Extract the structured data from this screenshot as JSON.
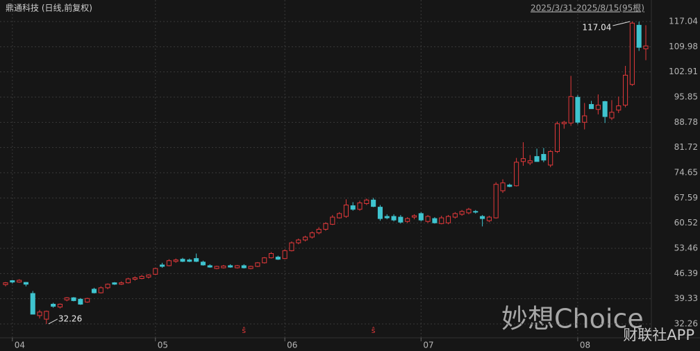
{
  "chart_data": {
    "type": "candlestick",
    "title": "鼎通科技 (日线,前复权)",
    "range_label": "2025/3/31-2025/8/15(95根)",
    "categories": [
      null,
      "04",
      null,
      null,
      null,
      null,
      null,
      null,
      null,
      null,
      null,
      null,
      null,
      null,
      null,
      null,
      null,
      null,
      null,
      null,
      null,
      null,
      "05",
      null,
      null,
      null,
      null,
      null,
      null,
      null,
      null,
      null,
      null,
      null,
      null,
      null,
      null,
      null,
      null,
      null,
      null,
      "06",
      null,
      null,
      null,
      null,
      null,
      null,
      null,
      null,
      null,
      null,
      null,
      null,
      null,
      null,
      null,
      null,
      null,
      null,
      null,
      "07",
      null,
      null,
      null,
      null,
      null,
      null,
      null,
      null,
      null,
      null,
      null,
      null,
      null,
      null,
      null,
      null,
      null,
      null,
      null,
      null,
      null,
      null,
      "08",
      null,
      null,
      null,
      null,
      null,
      null,
      null,
      null,
      null,
      null
    ],
    "open": [
      43.3,
      44.4,
      44.0,
      43.9,
      40.8,
      34.6,
      33.6,
      37.8,
      37.0,
      39.0,
      39.6,
      39.2,
      38.4,
      42.0,
      41.0,
      42.4,
      43.8,
      43.4,
      43.8,
      44.8,
      45.0,
      45.4,
      46.2,
      48.8,
      48.6,
      49.8,
      50.4,
      50.2,
      50.6,
      49.6,
      48.6,
      47.8,
      48.0,
      48.6,
      48.0,
      48.6,
      47.8,
      48.4,
      49.4,
      50.8,
      51.0,
      50.6,
      52.8,
      55.0,
      55.8,
      56.6,
      57.8,
      58.8,
      60.2,
      62.0,
      62.4,
      65.4,
      64.4,
      66.0,
      67.0,
      65.0,
      62.4,
      62.4,
      62.2,
      61.0,
      62.2,
      63.2,
      61.0,
      61.8,
      60.4,
      60.6,
      62.2,
      63.0,
      63.4,
      63.8,
      62.4,
      61.2,
      62.0,
      69.6,
      71.2,
      71.0,
      77.8,
      77.4,
      79.2,
      79.8,
      76.8,
      80.6,
      88.4,
      88.6,
      95.8,
      88.8,
      93.8,
      92.4,
      94.6,
      90.0,
      92.2,
      93.6,
      99.4,
      116.0,
      109.4
    ],
    "high": [
      44.0,
      44.6,
      44.8,
      44.0,
      41.5,
      36.2,
      36.0,
      38.2,
      38.0,
      39.8,
      39.8,
      39.5,
      39.6,
      42.4,
      42.8,
      43.6,
      44.0,
      44.2,
      45.2,
      45.6,
      46.0,
      46.2,
      48.0,
      49.4,
      50.4,
      50.6,
      50.8,
      50.6,
      52.0,
      50.0,
      49.0,
      48.6,
      48.8,
      49.0,
      48.8,
      49.0,
      48.6,
      49.6,
      51.0,
      52.4,
      51.4,
      53.2,
      55.4,
      56.2,
      57.0,
      58.2,
      59.4,
      60.8,
      62.8,
      63.6,
      67.2,
      66.4,
      66.8,
      67.4,
      67.6,
      65.6,
      63.0,
      63.0,
      62.8,
      62.2,
      63.0,
      63.6,
      62.8,
      62.2,
      62.6,
      62.8,
      63.6,
      64.2,
      64.8,
      64.2,
      62.8,
      62.6,
      72.0,
      72.8,
      71.6,
      78.8,
      83.2,
      79.6,
      81.4,
      81.6,
      81.0,
      89.0,
      89.2,
      101.8,
      96.4,
      94.2,
      94.8,
      96.6,
      94.8,
      95.0,
      96.0,
      104.6,
      117.04,
      117.0,
      116.0
    ],
    "low": [
      42.8,
      43.6,
      43.8,
      42.8,
      35.0,
      33.8,
      32.26,
      36.8,
      36.6,
      38.6,
      38.6,
      37.6,
      38.2,
      40.8,
      40.8,
      42.0,
      43.2,
      43.2,
      43.6,
      44.4,
      44.8,
      45.0,
      46.0,
      48.0,
      48.4,
      49.4,
      49.6,
      49.6,
      49.6,
      48.6,
      48.0,
      47.6,
      47.8,
      48.0,
      47.8,
      47.8,
      47.6,
      48.2,
      49.2,
      50.6,
      50.2,
      50.4,
      52.6,
      54.6,
      55.4,
      56.2,
      57.4,
      58.4,
      60.0,
      61.8,
      62.0,
      64.0,
      64.0,
      65.6,
      65.0,
      61.2,
      61.6,
      61.0,
      60.4,
      60.6,
      61.6,
      61.0,
      60.6,
      60.4,
      60.2,
      60.2,
      61.8,
      62.6,
      63.0,
      63.2,
      59.6,
      60.8,
      61.8,
      69.0,
      70.6,
      70.8,
      76.6,
      76.8,
      77.8,
      77.6,
      76.2,
      80.2,
      87.0,
      87.8,
      88.2,
      86.8,
      92.6,
      91.0,
      88.6,
      89.4,
      91.4,
      93.0,
      99.0,
      108.8,
      106.2
    ],
    "close": [
      43.8,
      44.0,
      44.5,
      43.4,
      35.0,
      35.6,
      35.8,
      37.2,
      37.8,
      39.6,
      38.8,
      37.8,
      39.4,
      41.0,
      42.4,
      43.4,
      43.4,
      43.8,
      44.9,
      45.2,
      45.6,
      46.0,
      47.8,
      48.4,
      50.0,
      50.2,
      49.8,
      49.8,
      49.8,
      48.8,
      48.2,
      48.4,
      48.5,
      48.2,
      48.6,
      48.0,
      48.4,
      49.4,
      50.8,
      52.0,
      50.4,
      52.8,
      55.0,
      55.8,
      56.6,
      57.8,
      58.8,
      60.4,
      62.2,
      63.2,
      65.6,
      64.4,
      66.2,
      67.0,
      65.2,
      61.8,
      62.0,
      61.4,
      60.8,
      61.8,
      62.6,
      61.4,
      62.4,
      60.6,
      62.0,
      62.4,
      63.2,
      63.8,
      64.4,
      63.6,
      61.8,
      62.2,
      71.4,
      71.8,
      70.8,
      77.6,
      78.6,
      78.0,
      77.8,
      78.2,
      80.6,
      88.4,
      88.8,
      96.0,
      88.8,
      90.6,
      92.6,
      93.6,
      90.4,
      91.6,
      93.4,
      102.0,
      116.6,
      109.8,
      110.2
    ],
    "up_color": "#e5393b",
    "down_color": "#3fc4cf",
    "ylim": [
      28.37,
      122.1
    ],
    "yticks": [
      32.26,
      39.33,
      46.39,
      53.46,
      60.52,
      67.59,
      74.65,
      81.72,
      88.78,
      95.85,
      102.91,
      109.98,
      117.04
    ],
    "grid": true,
    "annotations": [
      {
        "index": 92,
        "value": 117.04,
        "side": "left"
      },
      {
        "index": 6,
        "value": 32.26,
        "side": "right"
      }
    ],
    "event_markers": {
      "indices": [
        35,
        54
      ],
      "label": "ŝ",
      "color": "#e5393b"
    },
    "watermarks": [
      "妙想Choice",
      "财联社APP"
    ]
  }
}
